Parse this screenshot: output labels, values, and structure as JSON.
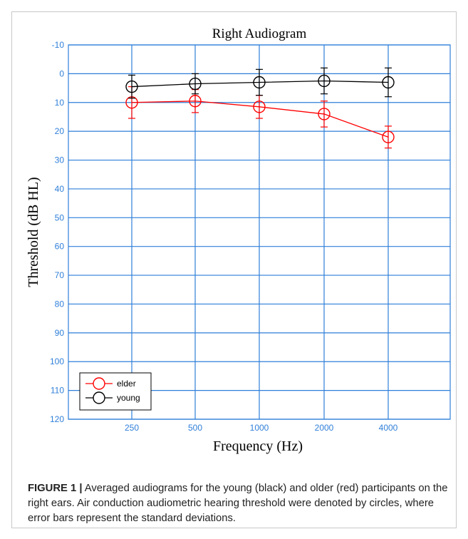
{
  "chart_data": {
    "type": "line",
    "title": "Right Audiogram",
    "xlabel": "Frequency (Hz)",
    "ylabel": "Threshold (dB HL)",
    "x_categories": [
      "250",
      "500",
      "1000",
      "2000",
      "4000"
    ],
    "y_ticks": [
      -10,
      0,
      10,
      20,
      30,
      40,
      50,
      60,
      70,
      80,
      90,
      100,
      110,
      120
    ],
    "ylim": [
      -10,
      120
    ],
    "y_inverted": true,
    "grid": true,
    "legend_position": "bottom-left",
    "marker": "open-circle",
    "series": [
      {
        "name": "elder",
        "color": "#ff0000",
        "values": [
          10,
          9.5,
          11.5,
          14,
          22
        ],
        "errors": [
          5.5,
          4,
          4,
          4.5,
          3.8
        ]
      },
      {
        "name": "young",
        "color": "#000000",
        "values": [
          4.5,
          3.5,
          3,
          2.5,
          3
        ],
        "errors": [
          4,
          3.5,
          4.5,
          4.5,
          5
        ]
      }
    ]
  },
  "colors": {
    "grid": "#2f7fd9",
    "axis_text": "#2f7fd9"
  },
  "caption": {
    "label": "FIGURE 1 |",
    "text": " Averaged audiograms for the young (black) and older (red) participants on the right ears. Air conduction audiometric hearing threshold were denoted by circles, where error bars represent the standard deviations."
  }
}
